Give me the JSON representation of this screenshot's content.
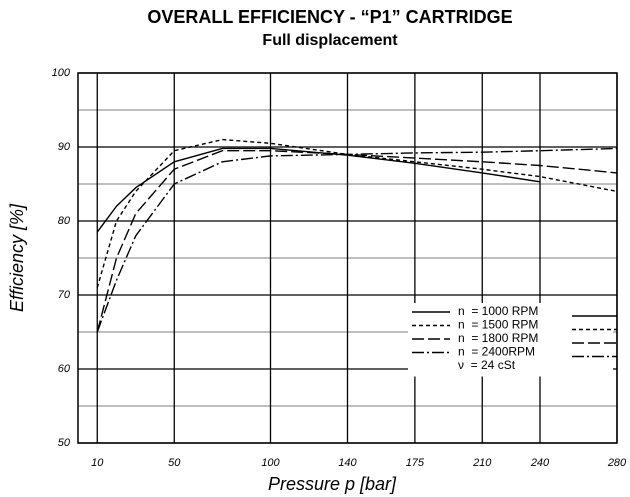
{
  "chart_data": {
    "type": "line",
    "title": "OVERALL EFFICIENCY - “P1” CARTRIDGE",
    "subtitle": "Full displacement",
    "x_label": "Pressure p [bar]",
    "y_label": "Efficiency [%]",
    "x": [
      10,
      20,
      30,
      50,
      75,
      100,
      140,
      175,
      210,
      240,
      280
    ],
    "series": [
      {
        "name": "n  = 1000 RPM",
        "color": "#000000",
        "dash": "none",
        "values": [
          78.5,
          82,
          84.5,
          88,
          89.8,
          89.8,
          88.9,
          87.8,
          86.5,
          85.3,
          null
        ]
      },
      {
        "name": "n  = 1500 RPM",
        "color": "#000000",
        "dash": "4 3",
        "values": [
          71,
          80,
          84,
          89.5,
          91,
          90.5,
          89,
          88,
          87,
          86,
          84
        ]
      },
      {
        "name": "n  = 1800 RPM",
        "color": "#000000",
        "dash": "12 4",
        "values": [
          65,
          75,
          81,
          87,
          89.5,
          89.5,
          89,
          88.5,
          88,
          87.5,
          86.5
        ]
      },
      {
        "name": "n  = 2400RPM",
        "color": "#000000",
        "dash": "12 3 2 3",
        "values": [
          65,
          72,
          78,
          85,
          88,
          88.8,
          89,
          89.2,
          89.3,
          89.5,
          89.8
        ]
      }
    ],
    "legend_note": "ν  = 24 cSt",
    "xlim": [
      0,
      280
    ],
    "xticks": [
      10,
      50,
      100,
      140,
      175,
      210,
      240,
      280
    ],
    "ylim": [
      50,
      100
    ],
    "yticks": [
      50,
      60,
      70,
      80,
      90,
      100
    ],
    "yminorticks": [
      55,
      65,
      75,
      85,
      95
    ],
    "grid": true,
    "legend": "lower right"
  }
}
